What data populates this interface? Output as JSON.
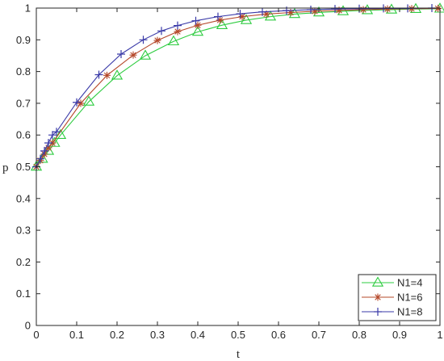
{
  "chart_data": {
    "type": "line",
    "xlabel": "t",
    "ylabel": "p",
    "xlim": [
      0,
      1
    ],
    "ylim": [
      0,
      1
    ],
    "xticks": [
      "0",
      "0.1",
      "0.2",
      "0.3",
      "0.4",
      "0.5",
      "0.6",
      "0.7",
      "0.8",
      "0.9",
      "1"
    ],
    "yticks": [
      "0",
      "0.1",
      "0.2",
      "0.3",
      "0.4",
      "0.5",
      "0.6",
      "0.7",
      "0.8",
      "0.9",
      "1"
    ],
    "grid": false,
    "legend_position": "bottom-right",
    "series": [
      {
        "name": "N1=4",
        "color": "#2ecc40",
        "marker": "triangle",
        "x": [
          0,
          0.015,
          0.03,
          0.045,
          0.06,
          0.13,
          0.2,
          0.27,
          0.34,
          0.4,
          0.46,
          0.52,
          0.58,
          0.64,
          0.7,
          0.76,
          0.82,
          0.88,
          0.94,
          1.0
        ],
        "y": [
          0.5,
          0.525,
          0.55,
          0.575,
          0.6,
          0.705,
          0.787,
          0.85,
          0.895,
          0.925,
          0.946,
          0.962,
          0.973,
          0.981,
          0.986,
          0.99,
          0.993,
          0.995,
          0.997,
          0.998
        ]
      },
      {
        "name": "N1=6",
        "color": "#b5482a",
        "marker": "star",
        "x": [
          0,
          0.01,
          0.02,
          0.03,
          0.04,
          0.11,
          0.175,
          0.24,
          0.3,
          0.35,
          0.4,
          0.455,
          0.51,
          0.57,
          0.63,
          0.69,
          0.75,
          0.81,
          0.87,
          0.93,
          0.995
        ],
        "y": [
          0.5,
          0.52,
          0.54,
          0.56,
          0.575,
          0.7,
          0.788,
          0.852,
          0.898,
          0.926,
          0.946,
          0.962,
          0.973,
          0.981,
          0.986,
          0.99,
          0.993,
          0.995,
          0.997,
          0.998,
          0.999
        ]
      },
      {
        "name": "N1=8",
        "color": "#3a3aa8",
        "marker": "plus",
        "x": [
          0,
          0.01,
          0.02,
          0.03,
          0.04,
          0.05,
          0.1,
          0.155,
          0.21,
          0.265,
          0.31,
          0.35,
          0.395,
          0.45,
          0.505,
          0.56,
          0.62,
          0.68,
          0.74,
          0.8,
          0.86,
          0.92,
          0.98
        ],
        "y": [
          0.5,
          0.525,
          0.55,
          0.575,
          0.6,
          0.61,
          0.703,
          0.79,
          0.855,
          0.9,
          0.928,
          0.945,
          0.96,
          0.973,
          0.982,
          0.988,
          0.992,
          0.995,
          0.997,
          0.998,
          0.999,
          0.999,
          1.0
        ]
      }
    ]
  }
}
